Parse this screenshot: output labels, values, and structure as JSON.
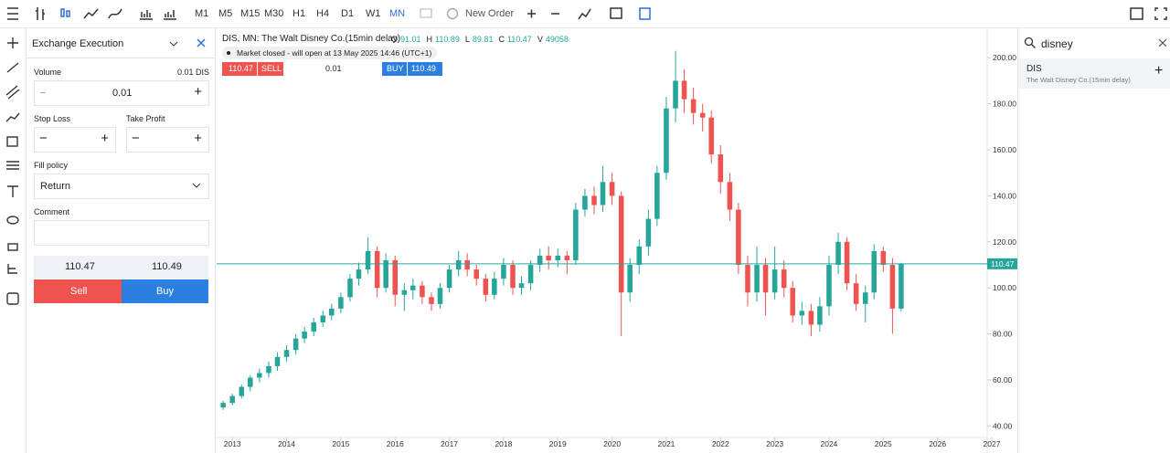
{
  "ui": {
    "timeframes": [
      "M1",
      "M5",
      "M15",
      "M30",
      "H1",
      "H4",
      "D1",
      "W1",
      "MN"
    ],
    "new_order": "New Order",
    "panel": {
      "title": "Exchange Execution",
      "volume_label": "Volume",
      "volume_unit": "0.01 DIS",
      "volume": "0.01",
      "stop_loss": "Stop Loss",
      "take_profit": "Take Profit",
      "fill_policy": "Fill policy",
      "fill_value": "Return",
      "comment": "Comment",
      "sell": "Sell",
      "buy": "Buy"
    },
    "market_status": "Market closed - will open at 13 May 2025 14:46 (UTC+1)",
    "trade_bar": {
      "sell_label": "SELL",
      "buy_label": "BUY",
      "volume": "0.01"
    },
    "search": {
      "query": "disney",
      "symbol": "DIS",
      "description": "The Walt Disney Co.(15min delay)"
    }
  },
  "chart_data": {
    "type": "candlestick",
    "title": "DIS, MN: The Walt Disney Co.(15min delay)",
    "legend": [
      {
        "label": "O",
        "value": 91.01
      },
      {
        "label": "H",
        "value": 110.89
      },
      {
        "label": "L",
        "value": 89.81
      },
      {
        "label": "C",
        "value": 110.47
      },
      {
        "label": "V",
        "value": 49058
      }
    ],
    "bid": 110.47,
    "ask": 110.49,
    "last_price": 110.47,
    "up_color": "#26a69a",
    "down_color": "#ef5350",
    "grid": false,
    "xlim": [
      2012.71,
      2027
    ],
    "xticks": [
      2013,
      2014,
      2015,
      2016,
      2017,
      2018,
      2019,
      2020,
      2021,
      2022,
      2023,
      2024,
      2025,
      2026,
      2027
    ],
    "ylim": [
      35,
      212
    ],
    "yticks": [
      {
        "value": 40,
        "label": "40.00"
      },
      {
        "value": 60,
        "label": "60.00"
      },
      {
        "value": 80,
        "label": "80.00"
      },
      {
        "value": 100,
        "label": "100.00"
      },
      {
        "value": 120,
        "label": "120.00"
      },
      {
        "value": 140,
        "label": "140.00"
      },
      {
        "value": 160,
        "label": "160.00"
      },
      {
        "value": 180,
        "label": "180.00"
      },
      {
        "value": 200,
        "label": "200.00"
      }
    ],
    "x": [
      2012.83,
      2013.0,
      2013.17,
      2013.33,
      2013.5,
      2013.67,
      2013.83,
      2014.0,
      2014.17,
      2014.33,
      2014.5,
      2014.67,
      2014.83,
      2015.0,
      2015.17,
      2015.33,
      2015.5,
      2015.67,
      2015.83,
      2016.0,
      2016.17,
      2016.33,
      2016.5,
      2016.67,
      2016.83,
      2017.0,
      2017.17,
      2017.33,
      2017.5,
      2017.67,
      2017.83,
      2018.0,
      2018.17,
      2018.33,
      2018.5,
      2018.67,
      2018.83,
      2019.0,
      2019.17,
      2019.33,
      2019.5,
      2019.67,
      2019.83,
      2020.0,
      2020.17,
      2020.33,
      2020.5,
      2020.67,
      2020.83,
      2021.0,
      2021.17,
      2021.33,
      2021.5,
      2021.67,
      2021.83,
      2022.0,
      2022.17,
      2022.33,
      2022.5,
      2022.67,
      2022.83,
      2023.0,
      2023.17,
      2023.33,
      2023.5,
      2023.67,
      2023.83,
      2024.0,
      2024.17,
      2024.33,
      2024.5,
      2024.67,
      2024.83,
      2025.0,
      2025.17,
      2025.33
    ],
    "open": [
      48,
      50,
      53,
      57,
      61,
      63,
      66,
      70,
      73,
      78,
      81,
      85,
      88,
      91,
      96,
      104,
      108,
      116,
      100,
      112,
      97,
      99,
      101,
      96,
      93,
      100,
      108,
      112,
      108,
      104,
      97,
      104,
      110,
      100,
      102,
      110,
      114,
      112,
      114,
      112,
      134,
      140,
      136,
      146,
      140,
      98,
      110,
      118,
      130,
      150,
      178,
      190,
      182,
      176,
      174,
      158,
      146,
      134,
      110,
      98,
      110,
      98,
      108,
      100,
      88,
      90,
      84,
      92,
      110,
      120,
      102,
      93,
      98,
      116,
      110,
      91.01
    ],
    "high": [
      51,
      54,
      58,
      62,
      65,
      68,
      72,
      75,
      80,
      83,
      87,
      90,
      93,
      98,
      106,
      111,
      122,
      118,
      115,
      114,
      102,
      104,
      103,
      98,
      102,
      110,
      116,
      115,
      110,
      106,
      107,
      113,
      112,
      105,
      112,
      117,
      118,
      117,
      116,
      137,
      143,
      144,
      153,
      150,
      142,
      113,
      121,
      134,
      153,
      183,
      203,
      195,
      187,
      180,
      177,
      162,
      150,
      137,
      114,
      118,
      113,
      118,
      112,
      103,
      94,
      93,
      96,
      114,
      124,
      122,
      106,
      101,
      119,
      118,
      113,
      110.89
    ],
    "low": [
      47,
      49,
      52,
      55,
      59,
      61,
      64,
      68,
      71,
      76,
      79,
      83,
      86,
      89,
      94,
      101,
      106,
      96,
      98,
      92,
      90,
      95,
      93,
      90,
      91,
      98,
      105,
      105,
      101,
      94,
      95,
      101,
      97,
      97,
      99,
      107,
      108,
      109,
      106,
      110,
      131,
      132,
      133,
      136,
      79,
      94,
      106,
      114,
      127,
      147,
      172,
      176,
      171,
      168,
      154,
      141,
      129,
      106,
      92,
      94,
      88,
      95,
      96,
      85,
      84,
      79,
      81,
      88,
      106,
      99,
      90,
      85,
      95,
      107,
      80,
      89.81
    ],
    "close": [
      50,
      53,
      57,
      61,
      63,
      66,
      70,
      73,
      78,
      81,
      85,
      88,
      91,
      96,
      104,
      108,
      116,
      100,
      112,
      97,
      99,
      101,
      96,
      93,
      100,
      108,
      112,
      108,
      104,
      97,
      104,
      110,
      100,
      102,
      110,
      114,
      112,
      114,
      112,
      134,
      140,
      136,
      146,
      140,
      98,
      110,
      118,
      130,
      150,
      178,
      190,
      182,
      176,
      174,
      158,
      146,
      134,
      110,
      98,
      110,
      98,
      108,
      100,
      88,
      90,
      84,
      92,
      110,
      120,
      102,
      93,
      98,
      116,
      110,
      91.01,
      110.47
    ]
  }
}
